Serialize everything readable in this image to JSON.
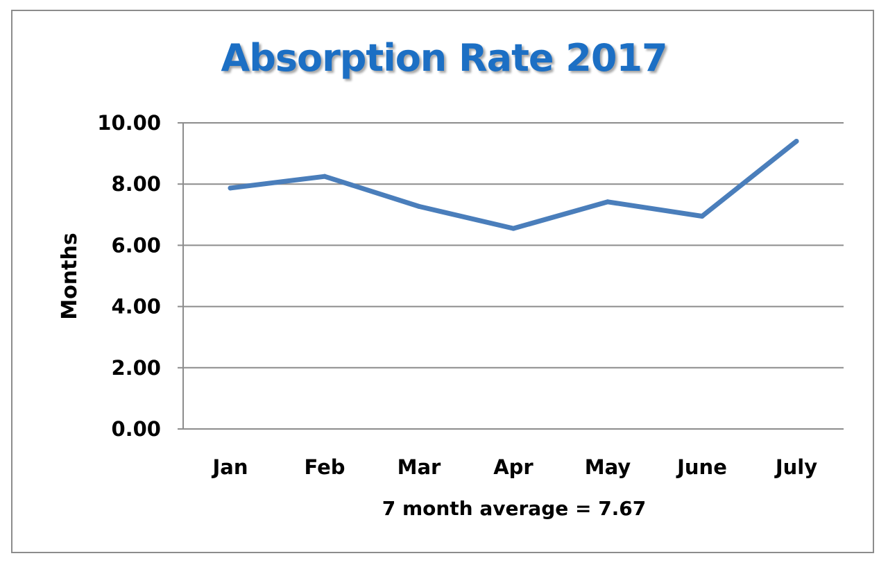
{
  "chart_data": {
    "type": "line",
    "title": "Absorption Rate 2017",
    "xlabel": "7 month average = 7.67",
    "ylabel": "Months",
    "categories": [
      "Jan",
      "Feb",
      "Mar",
      "Apr",
      "May",
      "June",
      "July"
    ],
    "series": [
      {
        "values": [
          7.87,
          8.25,
          7.27,
          6.55,
          7.42,
          6.95,
          9.4
        ],
        "color": "#4a7ebb"
      }
    ],
    "ylim": [
      0,
      10
    ],
    "yticks": [
      "0.00",
      "2.00",
      "4.00",
      "6.00",
      "8.00",
      "10.00"
    ],
    "grid": true,
    "legend": "none"
  }
}
